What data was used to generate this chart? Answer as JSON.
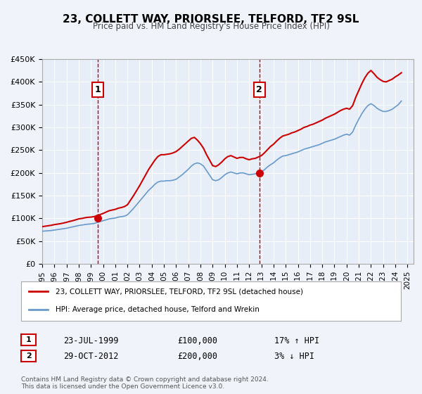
{
  "title": "23, COLLETT WAY, PRIORSLEE, TELFORD, TF2 9SL",
  "subtitle": "Price paid vs. HM Land Registry's House Price Index (HPI)",
  "legend_label_red": "23, COLLETT WAY, PRIORSLEE, TELFORD, TF2 9SL (detached house)",
  "legend_label_blue": "HPI: Average price, detached house, Telford and Wrekin",
  "sale1_date": "23-JUL-1999",
  "sale1_price": 100000,
  "sale1_hpi": "17% ↑ HPI",
  "sale2_date": "29-OCT-2012",
  "sale2_price": 200000,
  "sale2_hpi": "3% ↓ HPI",
  "copyright": "Contains HM Land Registry data © Crown copyright and database right 2024.\nThis data is licensed under the Open Government Licence v3.0.",
  "background_color": "#f0f4fa",
  "plot_bg_color": "#e8eef8",
  "red_color": "#cc0000",
  "blue_color": "#6699cc",
  "vline_color": "#cc0000",
  "ylim": [
    0,
    450000
  ],
  "xlim_start": 1995.0,
  "xlim_end": 2025.5,
  "yticks": [
    0,
    50000,
    100000,
    150000,
    200000,
    250000,
    300000,
    350000,
    400000,
    450000
  ],
  "ytick_labels": [
    "£0",
    "£50K",
    "£100K",
    "£150K",
    "£200K",
    "£250K",
    "£300K",
    "£350K",
    "£400K",
    "£450K"
  ],
  "xtick_years": [
    1995,
    1996,
    1997,
    1998,
    1999,
    2000,
    2001,
    2002,
    2003,
    2004,
    2005,
    2006,
    2007,
    2008,
    2009,
    2010,
    2011,
    2012,
    2013,
    2014,
    2015,
    2016,
    2017,
    2018,
    2019,
    2020,
    2021,
    2022,
    2023,
    2024,
    2025
  ],
  "sale1_x": 1999.55,
  "sale2_x": 2012.83,
  "hpi_data": {
    "years": [
      1995.0,
      1995.25,
      1995.5,
      1995.75,
      1996.0,
      1996.25,
      1996.5,
      1996.75,
      1997.0,
      1997.25,
      1997.5,
      1997.75,
      1998.0,
      1998.25,
      1998.5,
      1998.75,
      1999.0,
      1999.25,
      1999.5,
      1999.75,
      2000.0,
      2000.25,
      2000.5,
      2000.75,
      2001.0,
      2001.25,
      2001.5,
      2001.75,
      2002.0,
      2002.25,
      2002.5,
      2002.75,
      2003.0,
      2003.25,
      2003.5,
      2003.75,
      2004.0,
      2004.25,
      2004.5,
      2004.75,
      2005.0,
      2005.25,
      2005.5,
      2005.75,
      2006.0,
      2006.25,
      2006.5,
      2006.75,
      2007.0,
      2007.25,
      2007.5,
      2007.75,
      2008.0,
      2008.25,
      2008.5,
      2008.75,
      2009.0,
      2009.25,
      2009.5,
      2009.75,
      2010.0,
      2010.25,
      2010.5,
      2010.75,
      2011.0,
      2011.25,
      2011.5,
      2011.75,
      2012.0,
      2012.25,
      2012.5,
      2012.75,
      2013.0,
      2013.25,
      2013.5,
      2013.75,
      2014.0,
      2014.25,
      2014.5,
      2014.75,
      2015.0,
      2015.25,
      2015.5,
      2015.75,
      2016.0,
      2016.25,
      2016.5,
      2016.75,
      2017.0,
      2017.25,
      2017.5,
      2017.75,
      2018.0,
      2018.25,
      2018.5,
      2018.75,
      2019.0,
      2019.25,
      2019.5,
      2019.75,
      2020.0,
      2020.25,
      2020.5,
      2020.75,
      2021.0,
      2021.25,
      2021.5,
      2021.75,
      2022.0,
      2022.25,
      2022.5,
      2022.75,
      2023.0,
      2023.25,
      2023.5,
      2023.75,
      2024.0,
      2024.25,
      2024.5
    ],
    "values": [
      72000,
      72500,
      73000,
      73500,
      74500,
      75500,
      76500,
      77500,
      78500,
      80000,
      81500,
      83000,
      84500,
      85500,
      86500,
      87500,
      88000,
      89000,
      91000,
      93000,
      95000,
      97000,
      99000,
      100000,
      101000,
      103000,
      104000,
      105000,
      108000,
      115000,
      122000,
      130000,
      138000,
      146000,
      154000,
      162000,
      168000,
      175000,
      180000,
      182000,
      182000,
      183000,
      183000,
      184000,
      186000,
      191000,
      196000,
      202000,
      208000,
      215000,
      220000,
      222000,
      220000,
      215000,
      205000,
      195000,
      185000,
      183000,
      185000,
      190000,
      196000,
      200000,
      202000,
      200000,
      198000,
      200000,
      200000,
      198000,
      196000,
      197000,
      198000,
      200000,
      202000,
      207000,
      213000,
      218000,
      222000,
      228000,
      233000,
      237000,
      238000,
      240000,
      242000,
      244000,
      246000,
      249000,
      252000,
      254000,
      256000,
      258000,
      260000,
      262000,
      265000,
      268000,
      270000,
      272000,
      274000,
      277000,
      280000,
      283000,
      285000,
      283000,
      290000,
      305000,
      318000,
      330000,
      340000,
      348000,
      352000,
      348000,
      342000,
      338000,
      335000,
      335000,
      337000,
      340000,
      345000,
      350000,
      358000
    ]
  },
  "red_data": {
    "years": [
      1995.0,
      1995.25,
      1995.5,
      1995.75,
      1996.0,
      1996.25,
      1996.5,
      1996.75,
      1997.0,
      1997.25,
      1997.5,
      1997.75,
      1998.0,
      1998.25,
      1998.5,
      1998.75,
      1999.0,
      1999.25,
      1999.5,
      1999.75,
      2000.0,
      2000.25,
      2000.5,
      2000.75,
      2001.0,
      2001.25,
      2001.5,
      2001.75,
      2002.0,
      2002.25,
      2002.5,
      2002.75,
      2003.0,
      2003.25,
      2003.5,
      2003.75,
      2004.0,
      2004.25,
      2004.5,
      2004.75,
      2005.0,
      2005.25,
      2005.5,
      2005.75,
      2006.0,
      2006.25,
      2006.5,
      2006.75,
      2007.0,
      2007.25,
      2007.5,
      2007.75,
      2008.0,
      2008.25,
      2008.5,
      2008.75,
      2009.0,
      2009.25,
      2009.5,
      2009.75,
      2010.0,
      2010.25,
      2010.5,
      2010.75,
      2011.0,
      2011.25,
      2011.5,
      2011.75,
      2012.0,
      2012.25,
      2012.5,
      2012.75,
      2013.0,
      2013.25,
      2013.5,
      2013.75,
      2014.0,
      2014.25,
      2014.5,
      2014.75,
      2015.0,
      2015.25,
      2015.5,
      2015.75,
      2016.0,
      2016.25,
      2016.5,
      2016.75,
      2017.0,
      2017.25,
      2017.5,
      2017.75,
      2018.0,
      2018.25,
      2018.5,
      2018.75,
      2019.0,
      2019.25,
      2019.5,
      2019.75,
      2020.0,
      2020.25,
      2020.5,
      2020.75,
      2021.0,
      2021.25,
      2021.5,
      2021.75,
      2022.0,
      2022.25,
      2022.5,
      2022.75,
      2023.0,
      2023.25,
      2023.5,
      2023.75,
      2024.0,
      2024.25,
      2024.5
    ],
    "values": [
      82000,
      83000,
      84000,
      85000,
      86500,
      87500,
      88500,
      90000,
      91500,
      93500,
      95000,
      97000,
      99000,
      100000,
      101500,
      102500,
      103000,
      104000,
      106000,
      108500,
      111000,
      114000,
      117000,
      118500,
      120000,
      122500,
      124000,
      126000,
      130000,
      140000,
      150000,
      161000,
      172000,
      184000,
      196000,
      208000,
      218000,
      228000,
      236000,
      240000,
      240000,
      241000,
      242000,
      244000,
      247000,
      252000,
      258000,
      264000,
      270000,
      276000,
      278000,
      272000,
      264000,
      254000,
      240000,
      228000,
      216000,
      214000,
      218000,
      224000,
      231000,
      236000,
      238000,
      235000,
      232000,
      234000,
      234000,
      231000,
      229000,
      231000,
      232000,
      235000,
      238000,
      244000,
      251000,
      258000,
      263000,
      270000,
      276000,
      281000,
      283000,
      285000,
      288000,
      290000,
      293000,
      296000,
      300000,
      302000,
      305000,
      307000,
      310000,
      313000,
      316000,
      320000,
      323000,
      326000,
      329000,
      333000,
      337000,
      340000,
      342000,
      340000,
      348000,
      366000,
      381000,
      396000,
      409000,
      419000,
      425000,
      418000,
      410000,
      405000,
      401000,
      400000,
      403000,
      406000,
      411000,
      415000,
      420000
    ]
  }
}
